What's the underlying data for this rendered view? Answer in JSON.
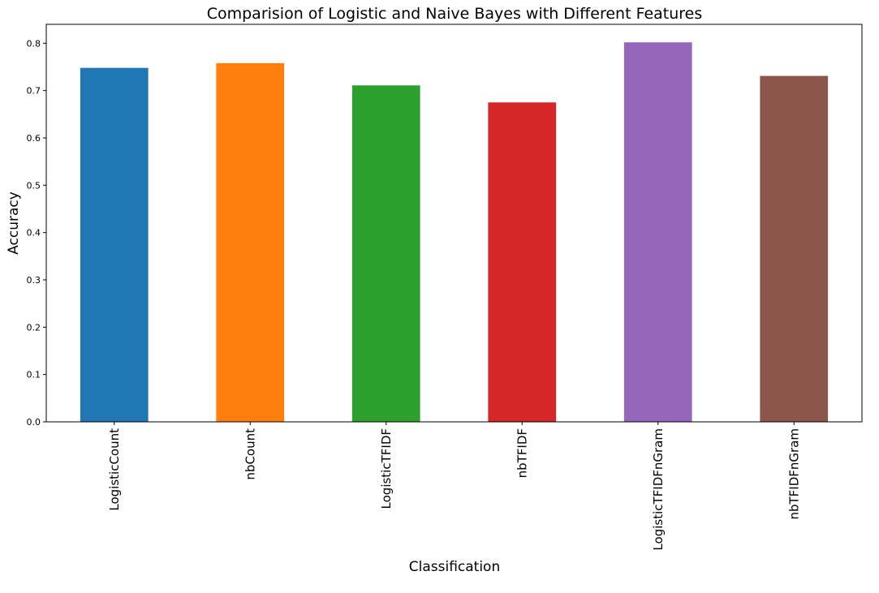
{
  "chart_data": {
    "type": "bar",
    "title": "Comparision of Logistic and Naive Bayes with Different Features",
    "xlabel": "Classification",
    "ylabel": "Accuracy",
    "categories": [
      "LogisticCount",
      "nbCount",
      "LogisticTFIDF",
      "nbTFIDF",
      "LogisticTFIDFnGram",
      "nbTFIDFnGram"
    ],
    "values": [
      0.748,
      0.758,
      0.711,
      0.675,
      0.802,
      0.731
    ],
    "colors": [
      "#1f77b4",
      "#ff7f0e",
      "#2ca02c",
      "#d62728",
      "#9467bd",
      "#8c564b"
    ],
    "ylim": [
      0,
      0.84
    ],
    "yticks": [
      0.0,
      0.1,
      0.2,
      0.3,
      0.4,
      0.5,
      0.6,
      0.7,
      0.8
    ],
    "ytick_labels": [
      "0.0",
      "0.1",
      "0.2",
      "0.3",
      "0.4",
      "0.5",
      "0.6",
      "0.7",
      "0.8"
    ],
    "grid": false,
    "legend": "none"
  }
}
